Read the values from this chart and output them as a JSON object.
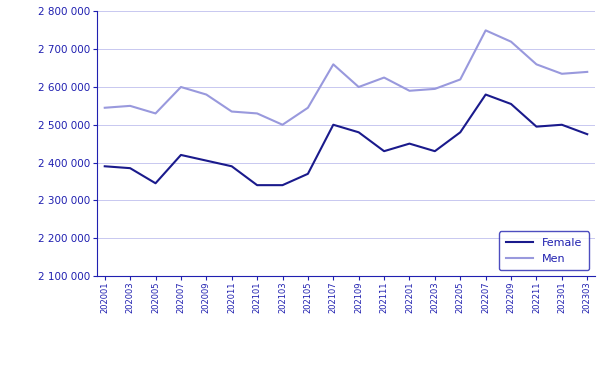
{
  "x_labels": [
    "202001",
    "202003",
    "202005",
    "202007",
    "202009",
    "202011",
    "202101",
    "202103",
    "202105",
    "202107",
    "202109",
    "202111",
    "202201",
    "202203",
    "202205",
    "202207",
    "202209",
    "202211",
    "202301",
    "202303"
  ],
  "female": [
    2390000,
    2385000,
    2345000,
    2420000,
    2405000,
    2390000,
    2340000,
    2340000,
    2370000,
    2500000,
    2480000,
    2430000,
    2450000,
    2430000,
    2480000,
    2580000,
    2555000,
    2495000,
    2500000,
    2475000
  ],
  "men": [
    2545000,
    2550000,
    2530000,
    2600000,
    2580000,
    2535000,
    2530000,
    2500000,
    2545000,
    2660000,
    2600000,
    2625000,
    2590000,
    2595000,
    2620000,
    2750000,
    2720000,
    2660000,
    2635000,
    2640000
  ],
  "female_color": "#1a1a8c",
  "men_color": "#9999dd",
  "ylim_min": 2100000,
  "ylim_max": 2800000,
  "ytick_step": 100000,
  "bg_color": "#ffffff",
  "grid_color": "#c8c8f0",
  "axis_color": "#2020b0",
  "label_color": "#2020b0",
  "legend_labels": [
    "Female",
    "Men"
  ]
}
